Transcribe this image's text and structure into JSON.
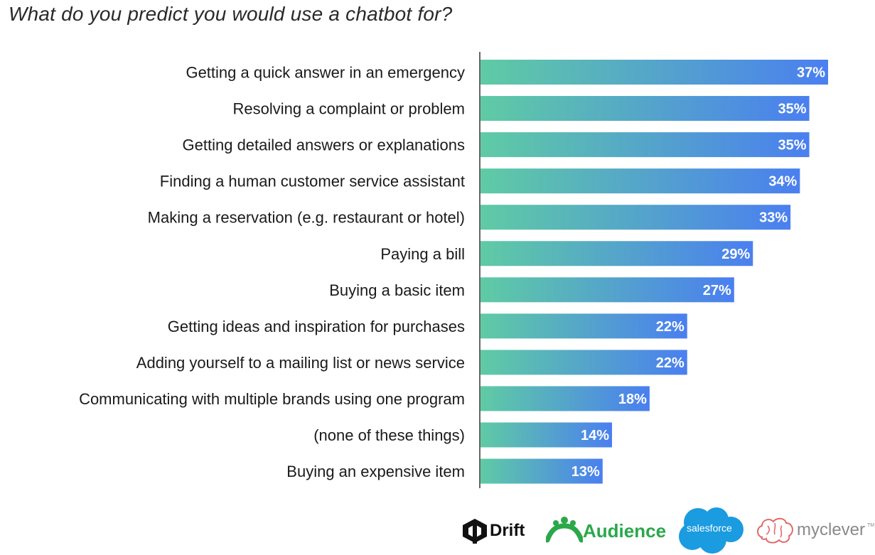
{
  "title": "What do you predict you would use a chatbot for?",
  "chart_data": {
    "type": "bar",
    "orientation": "horizontal",
    "title": "What do you predict you would use a chatbot for?",
    "categories": [
      "Getting a quick answer in an emergency",
      "Resolving a complaint or problem",
      "Getting detailed answers or explanations",
      "Finding a human customer service assistant",
      "Making a reservation (e.g. restaurant or hotel)",
      "Paying a bill",
      "Buying a basic item",
      "Getting ideas and inspiration for purchases",
      "Adding yourself to a mailing list or news service",
      "Communicating with multiple brands using one program",
      "(none of these things)",
      "Buying an expensive item"
    ],
    "values": [
      37,
      35,
      35,
      34,
      33,
      29,
      27,
      22,
      22,
      18,
      14,
      13
    ],
    "value_labels": [
      "37%",
      "35%",
      "35%",
      "34%",
      "33%",
      "29%",
      "27%",
      "22%",
      "22%",
      "18%",
      "14%",
      "13%"
    ],
    "unit": "%",
    "xlim": [
      0,
      37
    ],
    "grid": false,
    "gradient": [
      "#5fcba4",
      "#4a7ff0"
    ]
  },
  "logos": {
    "drift": "Drift",
    "audience": "Audience",
    "salesforce": "salesforce",
    "myclever": "myclever",
    "myclever_tm": "TM"
  },
  "colors": {
    "bar_start": "#5fcba4",
    "bar_end": "#4a7ff0",
    "axis": "#333333",
    "audience_green": "#2aa84a",
    "salesforce_blue": "#1b9be0",
    "myclever_red": "#e06a6a"
  }
}
